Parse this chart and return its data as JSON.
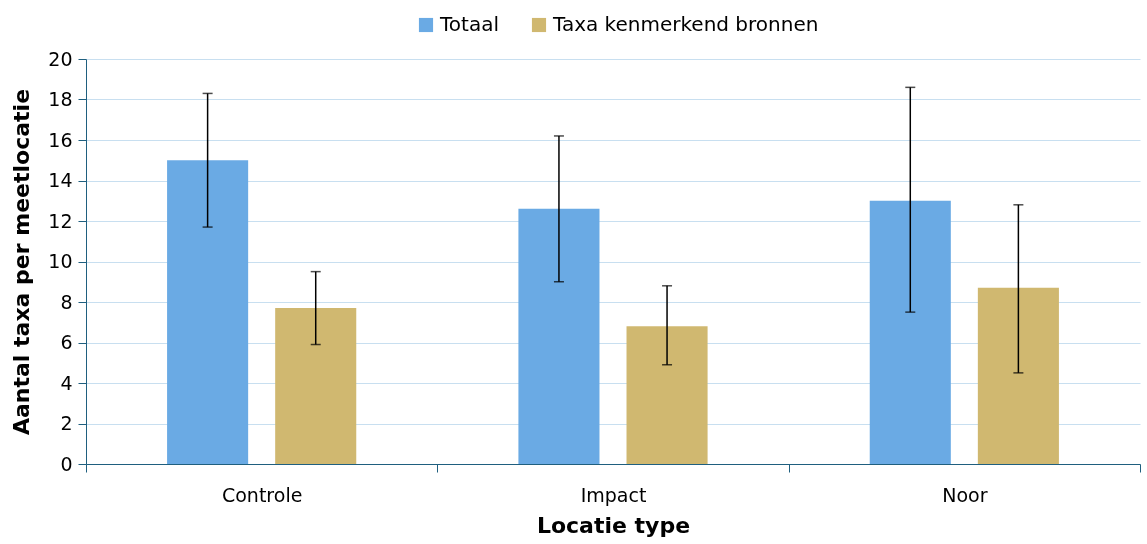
{
  "chart_data": {
    "type": "bar",
    "xlabel": "Locatie type",
    "ylabel": "Aantal taxa per meetlocatie",
    "categories": [
      "Controle",
      "Impact",
      "Noor"
    ],
    "series": [
      {
        "name": "Totaal",
        "color": "#6aaae4",
        "values": [
          15.0,
          12.6,
          13.0
        ],
        "errors": [
          [
            11.7,
            18.3
          ],
          [
            9.0,
            16.2
          ],
          [
            7.5,
            18.6
          ]
        ]
      },
      {
        "name": "Taxa kenmerkend bronnen",
        "color": "#d0b870",
        "values": [
          7.7,
          6.8,
          8.7
        ],
        "errors": [
          [
            5.9,
            9.5
          ],
          [
            4.9,
            8.8
          ],
          [
            4.5,
            12.8
          ]
        ]
      }
    ],
    "ylim": [
      0,
      20
    ],
    "yticks": [
      0,
      2,
      4,
      6,
      8,
      10,
      12,
      14,
      16,
      18,
      20
    ],
    "grid": "y",
    "legend": "top"
  }
}
